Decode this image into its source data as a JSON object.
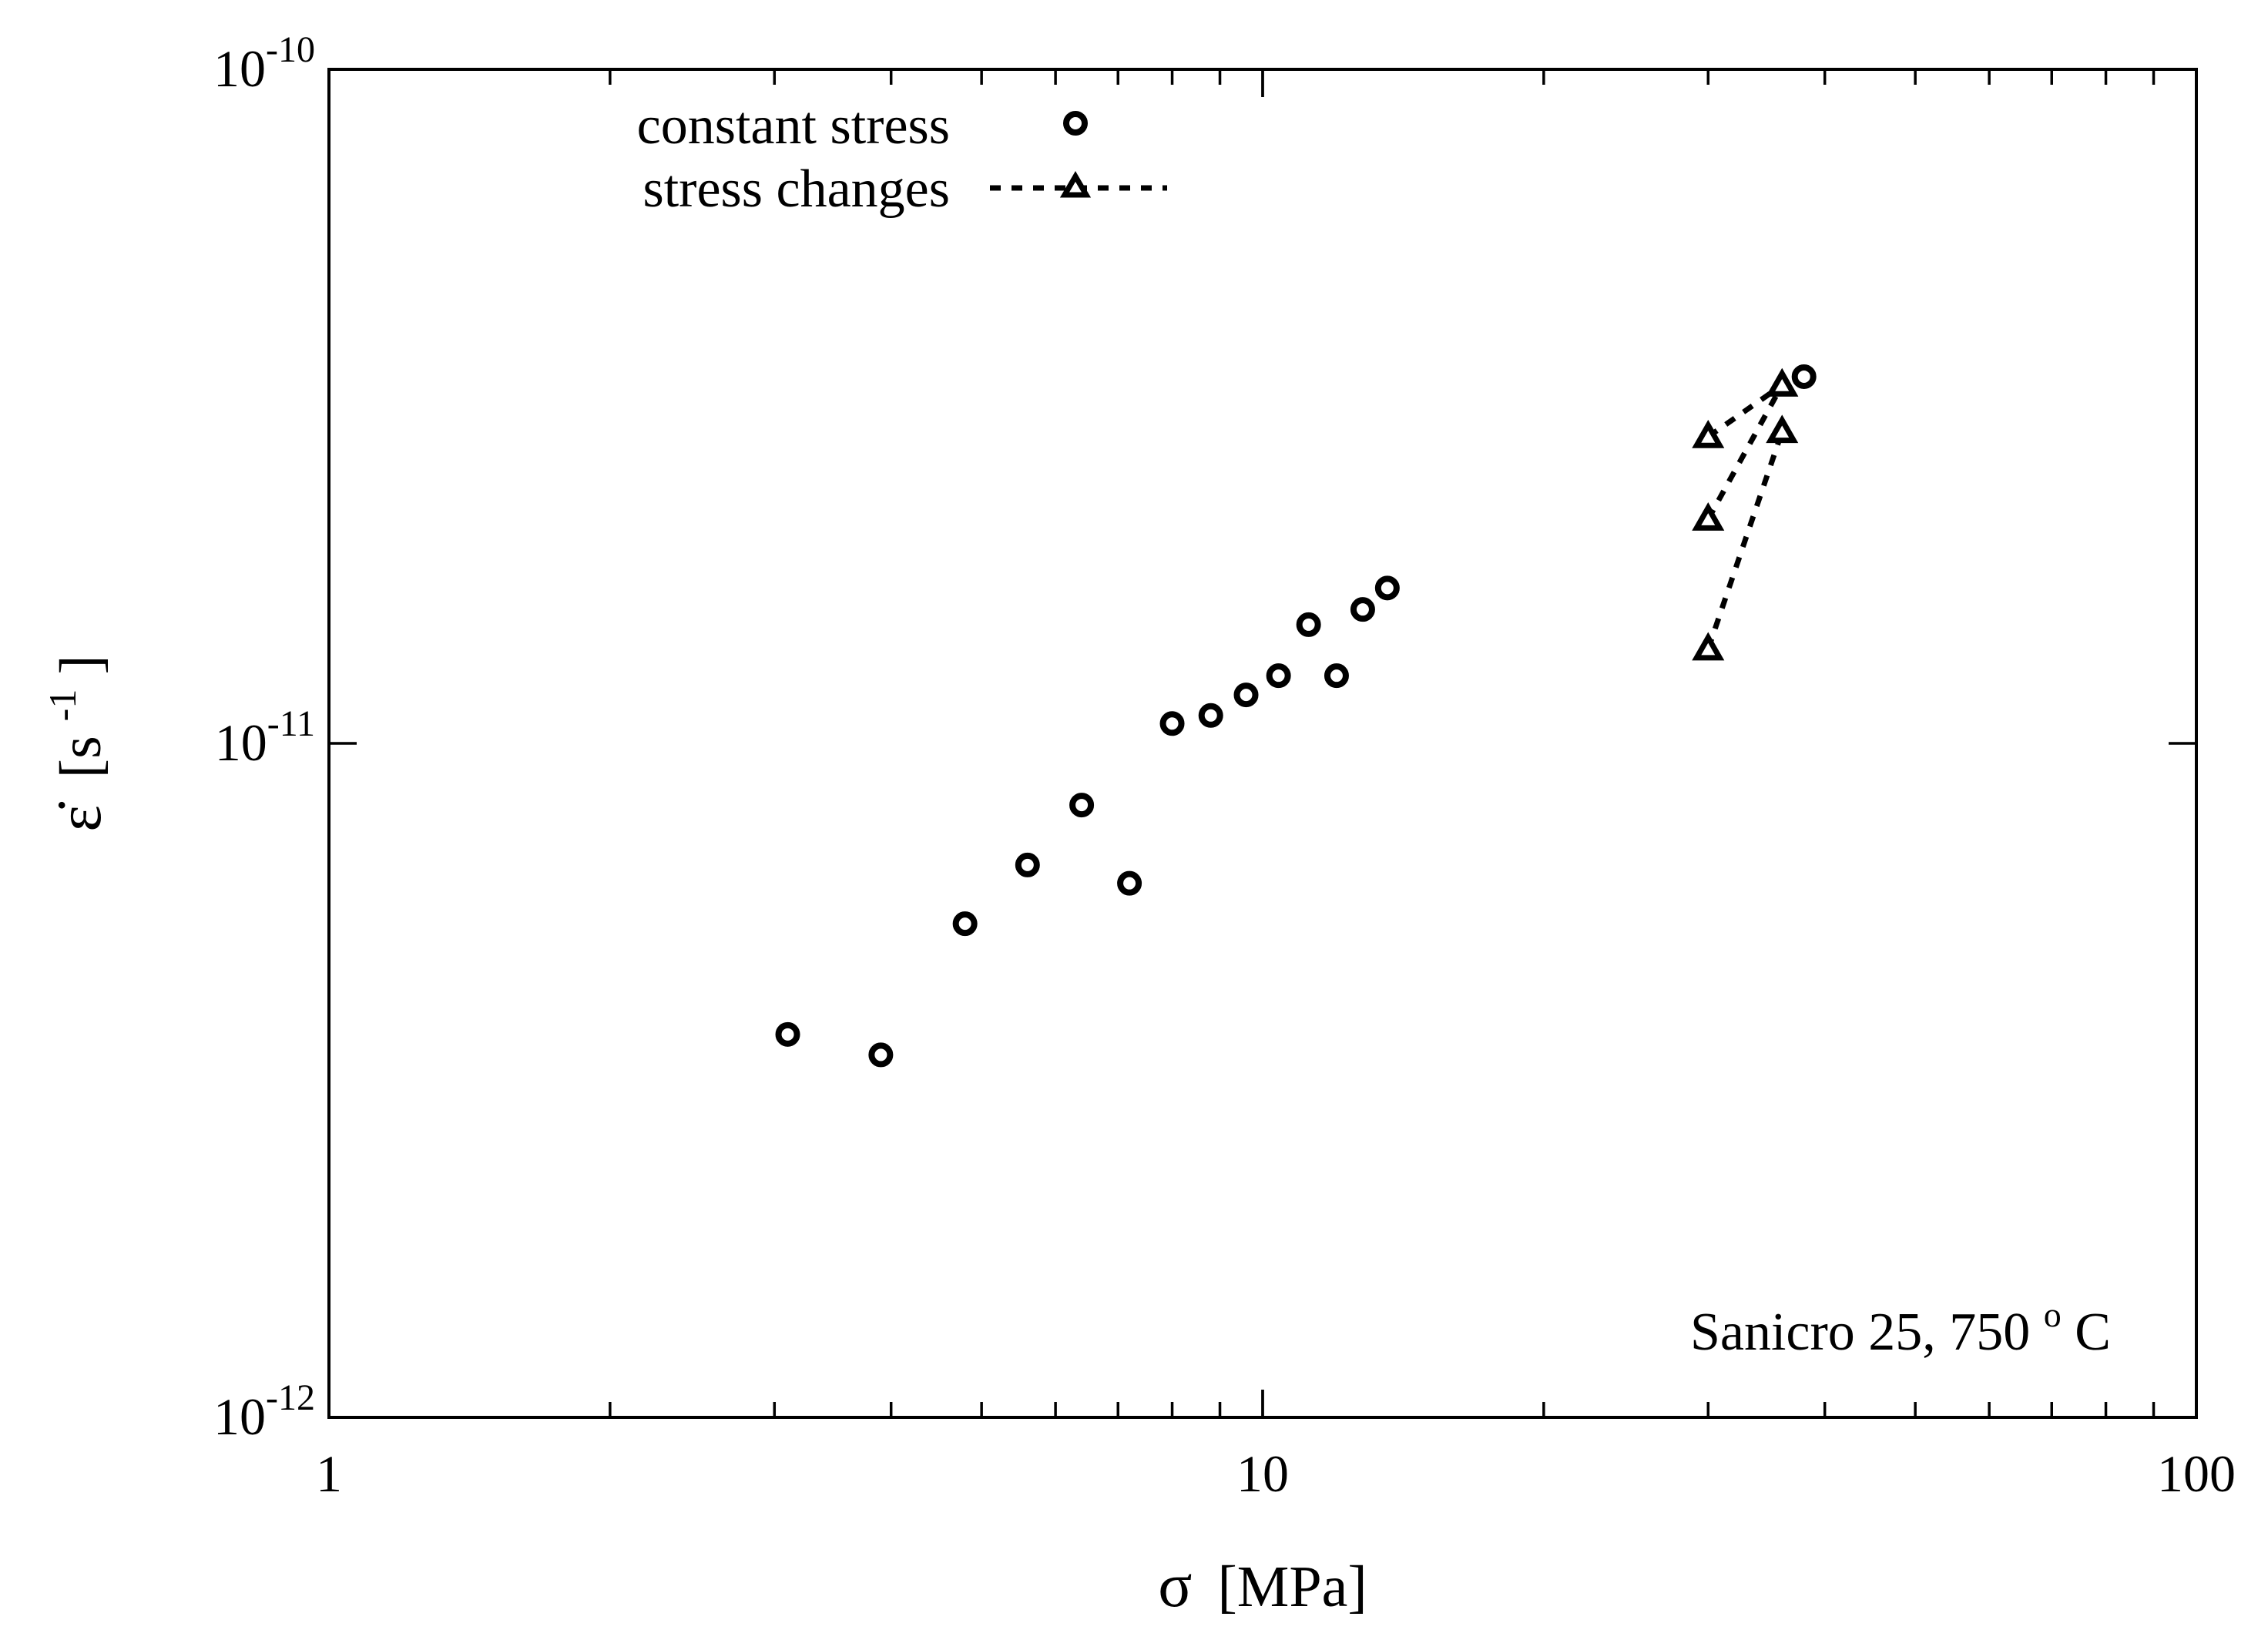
{
  "chart_data": {
    "type": "scatter",
    "title": "",
    "xlabel_symbol": "σ",
    "xlabel_unit": "[MPa]",
    "ylabel_symbol": "ε̇",
    "ylabel_unit_prefix": "[s",
    "ylabel_unit_exp": "-1",
    "ylabel_unit_suffix": "]",
    "xscale": "log",
    "yscale": "log",
    "xlim": [
      1,
      100
    ],
    "ylim": [
      1e-12,
      1e-10
    ],
    "x_ticks": [
      {
        "value": 1,
        "label": "1"
      },
      {
        "value": 10,
        "label": "10"
      },
      {
        "value": 100,
        "label": "100"
      }
    ],
    "y_ticks": [
      {
        "value": 1e-12,
        "base": "10",
        "exp": "-12"
      },
      {
        "value": 1e-11,
        "base": "10",
        "exp": "-11"
      },
      {
        "value": 1e-10,
        "base": "10",
        "exp": "-10"
      }
    ],
    "legend_position": "top-left",
    "series": [
      {
        "name": "constant stress",
        "marker": "circle",
        "line": "none",
        "points": [
          [
            3.1,
            3.7e-12
          ],
          [
            3.9,
            3.45e-12
          ],
          [
            4.8,
            5.4e-12
          ],
          [
            5.6,
            6.6e-12
          ],
          [
            6.4,
            8.1e-12
          ],
          [
            7.2,
            6.2e-12
          ],
          [
            8.0,
            1.07e-11
          ],
          [
            8.8,
            1.1e-11
          ],
          [
            9.6,
            1.18e-11
          ],
          [
            10.4,
            1.26e-11
          ],
          [
            11.2,
            1.5e-11
          ],
          [
            12.0,
            1.26e-11
          ],
          [
            12.8,
            1.58e-11
          ],
          [
            13.6,
            1.7e-11
          ],
          [
            38.0,
            3.5e-11
          ]
        ]
      },
      {
        "name": "stress changes",
        "marker": "triangle",
        "line": "dashed",
        "segments": [
          [
            [
              30.0,
              2.85e-11
            ],
            [
              36.0,
              3.4e-11
            ]
          ],
          [
            [
              30.0,
              2.15e-11
            ],
            [
              36.0,
              3.4e-11
            ]
          ],
          [
            [
              30.0,
              1.38e-11
            ],
            [
              36.0,
              2.9e-11
            ]
          ]
        ]
      }
    ],
    "annotation": {
      "text_prefix": "Sanicro 25, 750",
      "text_sup": "o",
      "text_suffix": "C",
      "position": "bottom-right"
    }
  }
}
